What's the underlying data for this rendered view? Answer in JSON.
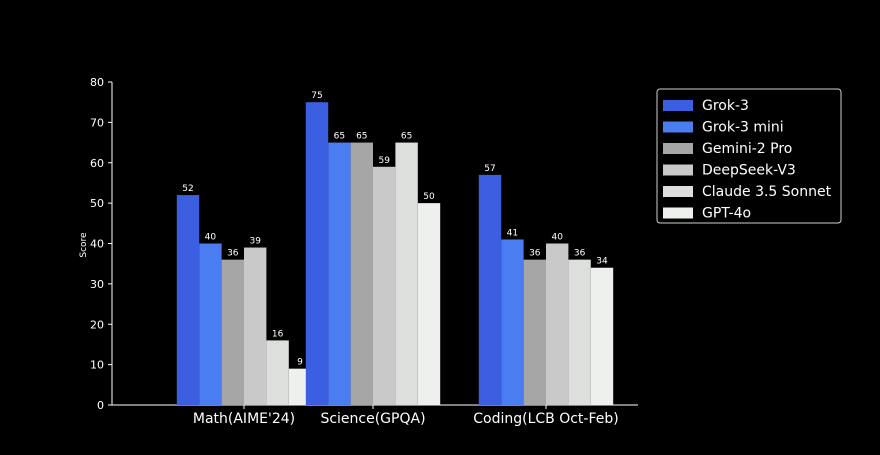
{
  "chart_data": {
    "type": "bar",
    "title": "",
    "xlabel": "",
    "ylabel": "Score",
    "ylim": [
      0,
      80
    ],
    "yticks": [
      0,
      10,
      20,
      30,
      40,
      50,
      60,
      70,
      80
    ],
    "categories": [
      "Math(AIME'24)",
      "Science(GPQA)",
      "Coding(LCB Oct-Feb)"
    ],
    "series": [
      {
        "name": "Grok-3",
        "color": "#3b5fe0",
        "values": [
          52,
          75,
          57
        ]
      },
      {
        "name": "Grok-3 mini",
        "color": "#4a7cf2",
        "values": [
          40,
          65,
          41
        ]
      },
      {
        "name": "Gemini-2 Pro",
        "color": "#a6a6a6",
        "values": [
          36,
          65,
          36
        ]
      },
      {
        "name": "DeepSeek-V3",
        "color": "#c9c9c9",
        "values": [
          39,
          59,
          40
        ]
      },
      {
        "name": "Claude 3.5 Sonnet",
        "color": "#dcdfdc",
        "values": [
          16,
          65,
          36
        ]
      },
      {
        "name": "GPT-4o",
        "color": "#eef0ee",
        "values": [
          9,
          50,
          34
        ]
      }
    ],
    "legend_position": "top-right",
    "grid": false,
    "data_labels": true
  }
}
